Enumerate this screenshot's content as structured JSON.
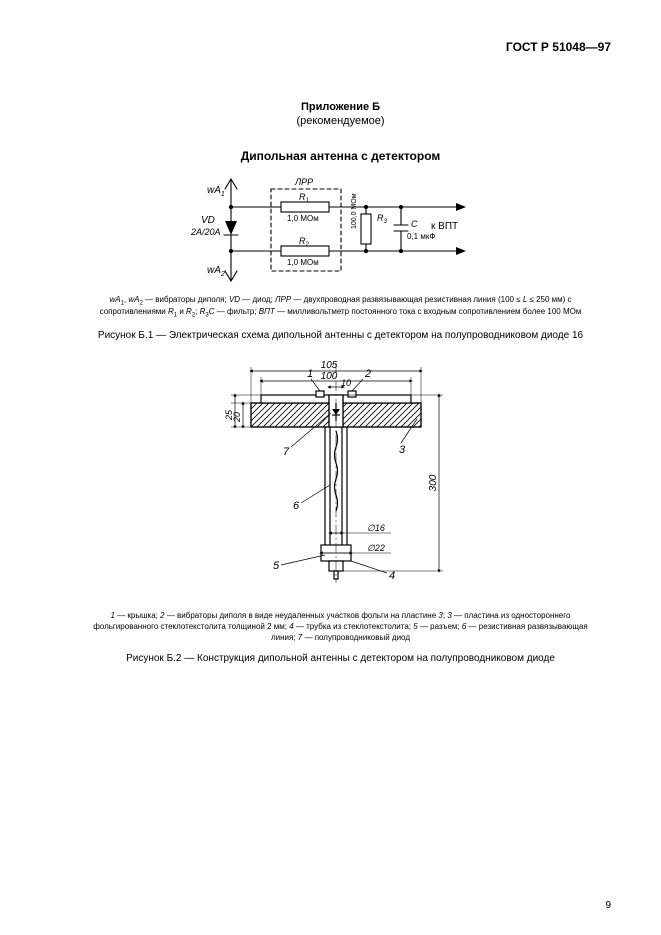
{
  "document": {
    "standard_number": "ГОСТ Р 51048—97",
    "page_number": "9"
  },
  "appendix": {
    "line1": "Приложение Б",
    "line2": "(рекомендуемое)"
  },
  "section_title": "Дипольная антенна с детектором",
  "figure1": {
    "legend_html": "<span class='ital'>wA</span><span class='sub'>1</span>, <span class='ital'>wA</span><span class='sub'>2</span> — вибраторы диполя; <span class='ital'>VD</span> — диод; <span class='ital'>ЛРР</span> — двухпроводная развязывающая резистивная линия (100 ≤ <span class='ital'>L</span> ≤ 250 мм) с сопротивлениями <span class='ital'>R</span><span class='sub'>1</span> и <span class='ital'>R</span><span class='sub'>2</span>; <span class='ital'>R</span><span class='sub'>3</span><span class='ital'>C</span> — фильтр; <span class='ital'>ВПТ</span> — милливольтметр постоянного тока с входным сопротивлением более 100 МОм",
    "caption": "Рисунок Б.1 — Электрическая схема дипольной антенны с детектором на полупроводниковом диоде 16",
    "labels": {
      "wa1": "wA",
      "wa1_sub": "1",
      "wa2": "wA",
      "wa2_sub": "2",
      "vd": "VD",
      "vd_sub": "2А/20А",
      "lpp": "ЛРР",
      "r1": "R",
      "r1_sub": "1",
      "r1_val": "1,0 МОм",
      "r2": "R",
      "r2_sub": "2",
      "r2_val": "1,0 МОм",
      "r3": "R",
      "r3_sub": "3",
      "r3_val": "100,0 МОм",
      "c": "C",
      "c_val": "0,1 мкФ",
      "out": "к  ВПТ"
    },
    "style": {
      "stroke": "#000000",
      "stroke_width": 1.1,
      "font_family": "Arial",
      "font_size_label": 11,
      "font_size_small": 8,
      "font_size_sub": 7
    }
  },
  "figure2": {
    "legend_html": "<span class='ital'>1</span> — крышка; <span class='ital'>2</span> — вибраторы диполя в виде неудаленных участков фольги на пластине <span class='ital'>3</span>; <span class='ital'>3</span> — пластина из одностороннего фольгированного стеклотекстолита толщиной 2 мм; <span class='ital'>4</span> — трубка из стеклотекстолита; <span class='ital'>5</span> — разъем; <span class='ital'>6</span> — резистивная развязывающая линия; <span class='ital'>7</span> — полупроводниковый диод",
    "caption": "Рисунок Б.2 — Конструкция дипольной антенны с детектором на полупроводниковом диоде",
    "dims": {
      "w105": "105",
      "w100": "100",
      "w10": "10",
      "h25": "25",
      "h20": "20",
      "h300": "300",
      "d16": "∅16",
      "d22": "∅22"
    },
    "callouts": [
      "1",
      "2",
      "3",
      "4",
      "5",
      "6",
      "7"
    ],
    "style": {
      "stroke": "#000000",
      "stroke_width": 1.2,
      "hatch_spacing": 5,
      "font_size_dim": 10,
      "font_size_callout": 11
    }
  }
}
